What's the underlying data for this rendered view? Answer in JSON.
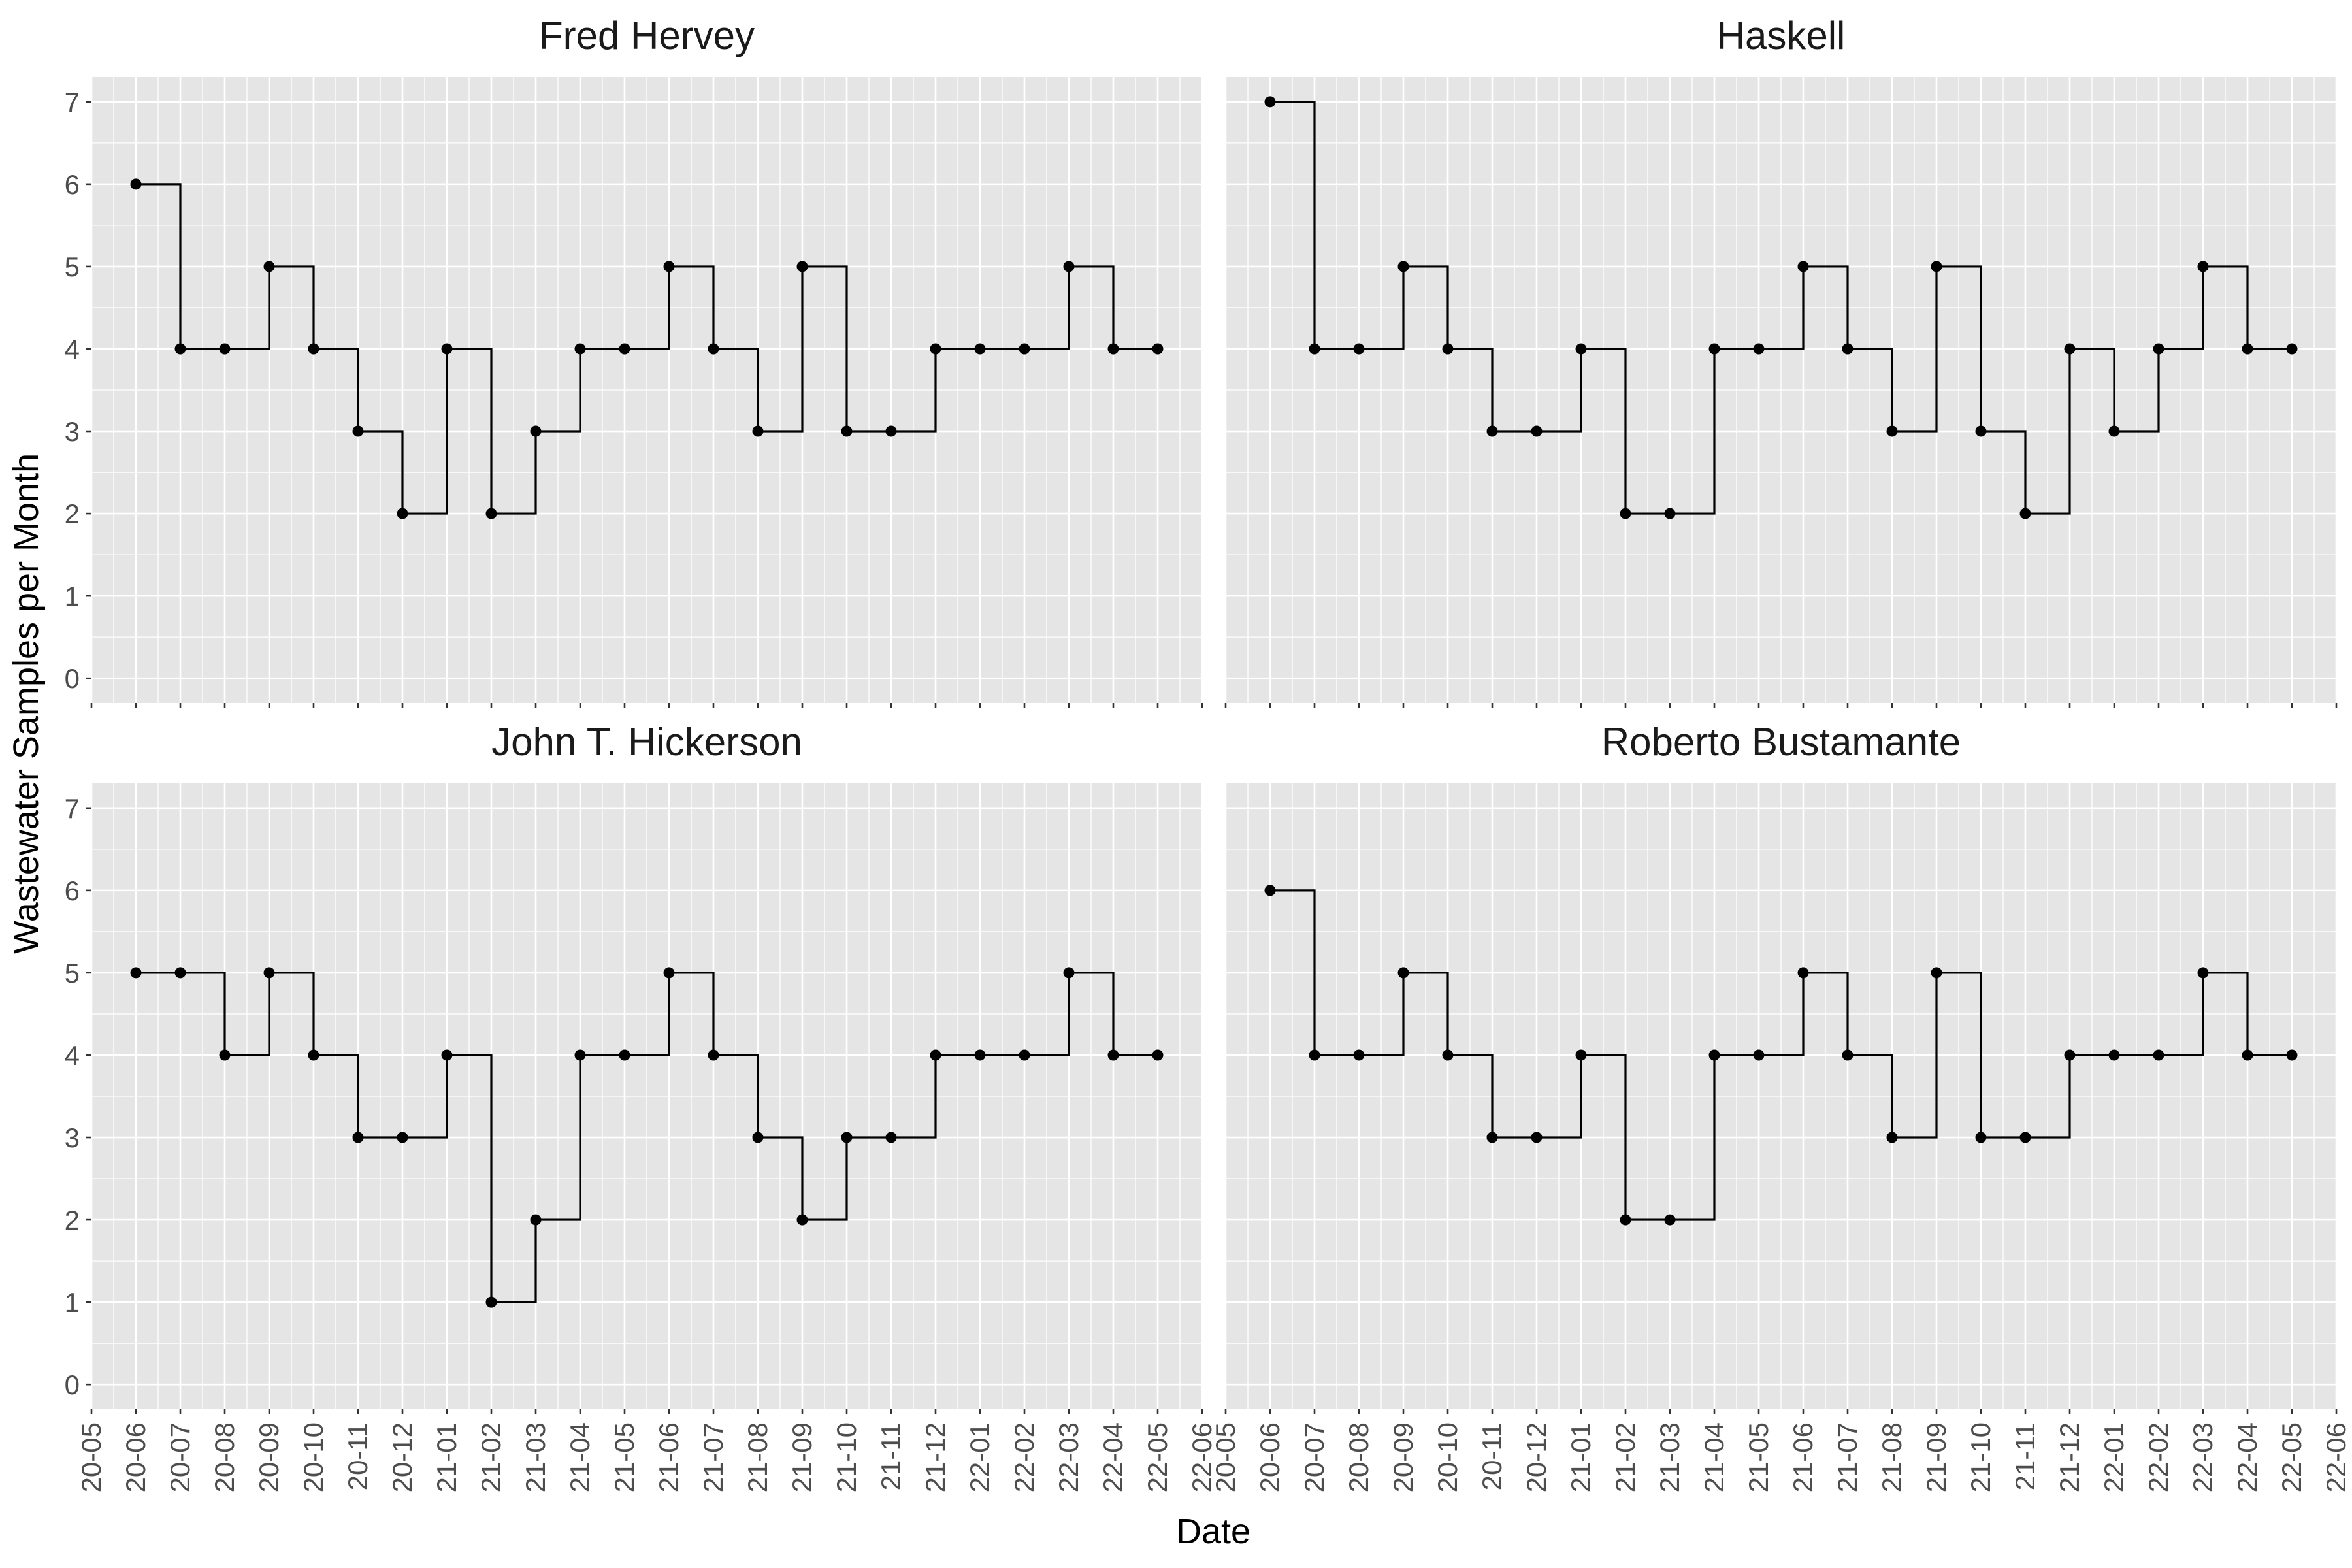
{
  "chart_data": {
    "type": "line",
    "step": true,
    "xlabel": "Date",
    "ylabel": "Wastewater Samples per Month",
    "ylim": [
      -0.3,
      7.3
    ],
    "yticks": [
      0,
      1,
      2,
      3,
      4,
      5,
      6,
      7
    ],
    "xlim": [
      "2020-05",
      "2022-06"
    ],
    "x_tick_labels": [
      "20-05",
      "20-06",
      "20-07",
      "20-08",
      "20-09",
      "20-10",
      "20-11",
      "20-12",
      "21-01",
      "21-02",
      "21-03",
      "21-04",
      "21-05",
      "21-06",
      "21-07",
      "21-08",
      "21-09",
      "21-10",
      "21-11",
      "21-12",
      "22-01",
      "22-02",
      "22-03",
      "22-04",
      "22-05",
      "22-06"
    ],
    "x": [
      "2020-06",
      "2020-07",
      "2020-08",
      "2020-09",
      "2020-10",
      "2020-11",
      "2020-12",
      "2021-01",
      "2021-02",
      "2021-03",
      "2021-04",
      "2021-05",
      "2021-06",
      "2021-07",
      "2021-08",
      "2021-09",
      "2021-10",
      "2021-11",
      "2021-12",
      "2022-01",
      "2022-02",
      "2022-03",
      "2022-04",
      "2022-05"
    ],
    "grid": true,
    "facets": [
      {
        "title": "Fred Hervey",
        "values": [
          6,
          4,
          4,
          5,
          4,
          3,
          2,
          4,
          2,
          3,
          4,
          4,
          5,
          4,
          3,
          5,
          3,
          3,
          4,
          4,
          4,
          5,
          4,
          4
        ]
      },
      {
        "title": "Haskell",
        "values": [
          7,
          4,
          4,
          5,
          4,
          3,
          3,
          4,
          2,
          2,
          4,
          4,
          5,
          4,
          3,
          5,
          3,
          2,
          4,
          3,
          4,
          5,
          4,
          4
        ]
      },
      {
        "title": "John T. Hickerson",
        "values": [
          5,
          5,
          4,
          5,
          4,
          3,
          3,
          4,
          1,
          2,
          4,
          4,
          5,
          4,
          3,
          2,
          3,
          3,
          4,
          4,
          4,
          5,
          4,
          4
        ]
      },
      {
        "title": "Roberto Bustamante",
        "values": [
          6,
          4,
          4,
          5,
          4,
          3,
          3,
          4,
          2,
          2,
          4,
          4,
          5,
          4,
          3,
          5,
          3,
          3,
          4,
          4,
          4,
          5,
          4,
          4
        ]
      }
    ]
  }
}
